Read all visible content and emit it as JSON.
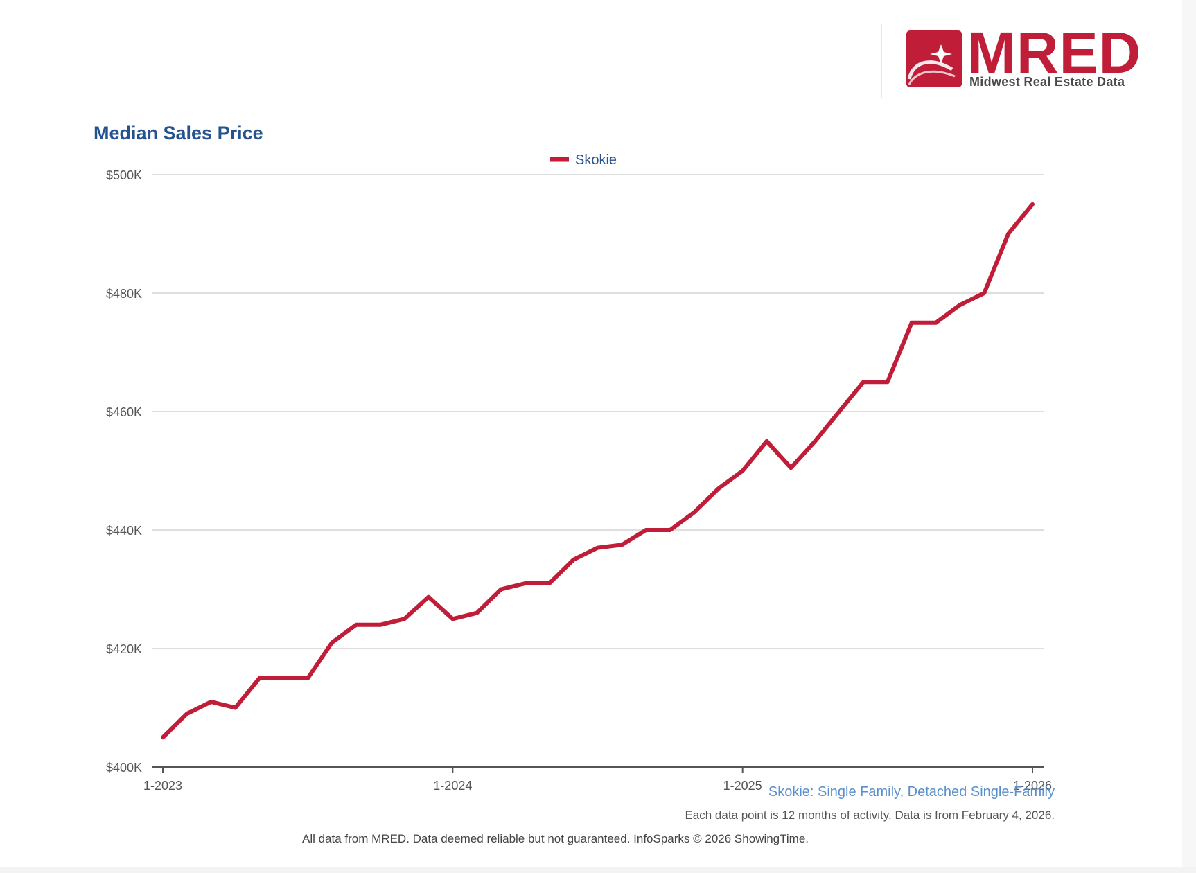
{
  "brand": {
    "logo_text": "MRED",
    "logo_subtitle": "Midwest Real Estate Data",
    "colors": {
      "brand_red": "#c01d39",
      "title_blue": "#24538f",
      "footer_blue": "#5a8fcc"
    }
  },
  "chart_data": {
    "type": "line",
    "title": "Median Sales Price",
    "xlabel": "",
    "ylabel": "",
    "legend": {
      "position": "top-center",
      "entries": [
        "Skokie"
      ]
    },
    "grid": true,
    "x_ticks": [
      "1-2023",
      "1-2024",
      "1-2025",
      "1-2026"
    ],
    "y_ticks": [
      "$400K",
      "$420K",
      "$440K",
      "$460K",
      "$480K",
      "$500K"
    ],
    "ylim": [
      400000,
      500000
    ],
    "x": [
      "1-2023",
      "2-2023",
      "3-2023",
      "4-2023",
      "5-2023",
      "6-2023",
      "7-2023",
      "8-2023",
      "9-2023",
      "10-2023",
      "11-2023",
      "12-2023",
      "1-2024",
      "2-2024",
      "3-2024",
      "4-2024",
      "5-2024",
      "6-2024",
      "7-2024",
      "8-2024",
      "9-2024",
      "10-2024",
      "11-2024",
      "12-2024",
      "1-2025",
      "2-2025",
      "3-2025",
      "4-2025",
      "5-2025",
      "6-2025",
      "7-2025",
      "8-2025",
      "9-2025",
      "10-2025",
      "11-2025",
      "12-2025",
      "1-2026"
    ],
    "series": [
      {
        "name": "Skokie",
        "color": "#c01d39",
        "values": [
          405000,
          409000,
          411000,
          410000,
          415000,
          415000,
          415000,
          421000,
          424000,
          424000,
          425000,
          428700,
          425000,
          426000,
          430000,
          431000,
          431000,
          435000,
          437000,
          437500,
          440000,
          440000,
          443000,
          447000,
          450000,
          455000,
          450500,
          455000,
          460000,
          465000,
          465000,
          475000,
          475000,
          478000,
          480000,
          490000,
          495000
        ]
      }
    ]
  },
  "footer": {
    "series_description": "Skokie: Single Family, Detached Single-Family",
    "note": "Each data point is 12 months of activity. Data is from February 4, 2026.",
    "source": "All data from MRED. Data deemed reliable but not guaranteed. InfoSparks © 2026 ShowingTime."
  }
}
